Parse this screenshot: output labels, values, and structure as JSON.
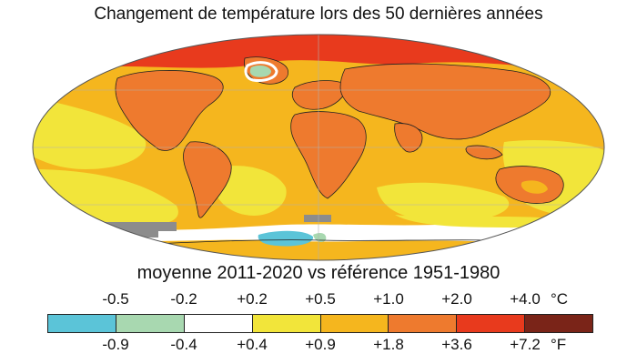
{
  "title": "Changement de température lors des 50 dernières années",
  "subtitle": "moyenne 2011-2020 vs référence 1951-1980",
  "legend": {
    "celsius_ticks": [
      "-0.5",
      "-0.2",
      "+0.2",
      "+0.5",
      "+1.0",
      "+2.0",
      "+4.0"
    ],
    "celsius_unit": "°C",
    "fahrenheit_ticks": [
      "-0.9",
      "-0.4",
      "+0.4",
      "+0.9",
      "+1.8",
      "+3.6",
      "+7.2"
    ],
    "fahrenheit_unit": "°F",
    "bins": [
      {
        "color": "#5bc4d8"
      },
      {
        "color": "#a8d8b0"
      },
      {
        "color": "#ffffff"
      },
      {
        "color": "#f2e53a"
      },
      {
        "color": "#f5b61e"
      },
      {
        "color": "#ee7a2e"
      },
      {
        "color": "#e83a1d"
      },
      {
        "color": "#7a2418"
      }
    ]
  },
  "map": {
    "background_color": "#f5b61e",
    "ocean_warm_color": "#f2e53a",
    "arctic_color": "#e83a1d",
    "land_color": "#ee7a2e",
    "no_data_color": "#8c8c8c"
  }
}
